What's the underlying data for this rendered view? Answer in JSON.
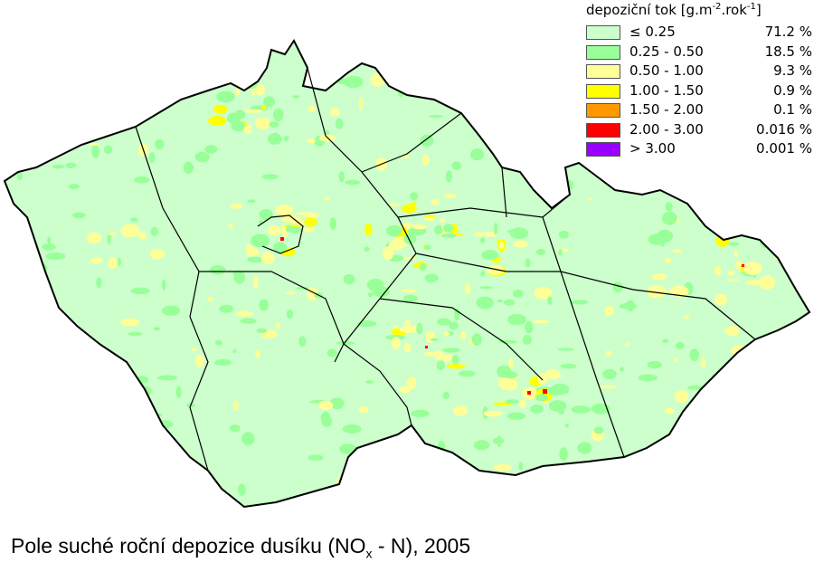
{
  "legend": {
    "title_main": "depoziční tok [g.m",
    "title_exp1": "-2",
    "title_mid": ".rok",
    "title_exp2": "-1",
    "title_end": "]",
    "classes": [
      {
        "label": "≤ 0.25",
        "percent": "71.2 %",
        "color": "#ccffcc"
      },
      {
        "label": "0.25 - 0.50",
        "percent": "18.5 %",
        "color": "#99ff99"
      },
      {
        "label": "0.50 - 1.00",
        "percent": "9.3 %",
        "color": "#ffff99"
      },
      {
        "label": "1.00 - 1.50",
        "percent": "0.9 %",
        "color": "#ffff00"
      },
      {
        "label": "1.50 - 2.00",
        "percent": "0.1 %",
        "color": "#ff9900"
      },
      {
        "label": "2.00 - 3.00",
        "percent": "0.016 %",
        "color": "#ff0000"
      },
      {
        "label": "> 3.00",
        "percent": "0.001 %",
        "color": "#9900ff"
      }
    ]
  },
  "caption": {
    "main": "Pole suché roční depozice dusíku (NO",
    "sub": "x",
    "end": " - N), 2005"
  }
}
